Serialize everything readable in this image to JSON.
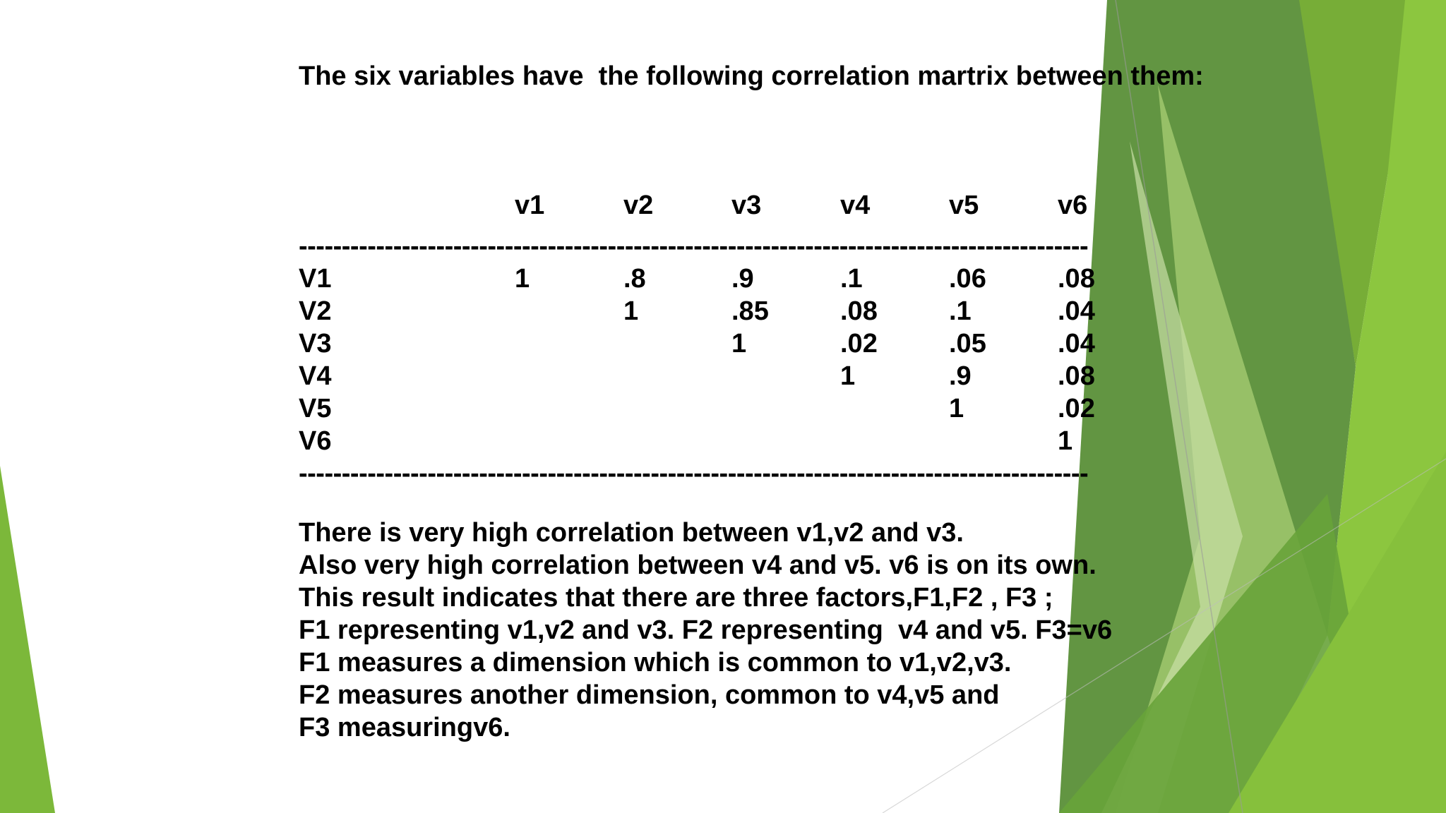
{
  "slide": {
    "title": "The six variables have  the following correlation martrix between them:",
    "colors": {
      "green_dark": "#4f8a36",
      "green_mid": "#6fa83a",
      "green_light": "#8cc63f",
      "green_pale": "#c9dfa6"
    }
  },
  "matrix": {
    "column_headers": [
      "v1",
      "v2",
      "v3",
      "v4",
      "v5",
      "v6"
    ],
    "divider": "--------------------------------------------------------------------------------------------",
    "rows": [
      {
        "label": "V1",
        "values": [
          "1",
          ".8",
          ".9",
          ".1",
          ".06",
          ".08"
        ]
      },
      {
        "label": "V2",
        "values": [
          "",
          "1",
          ".85",
          ".08",
          ".1",
          ".04"
        ]
      },
      {
        "label": "V3",
        "values": [
          "",
          "",
          "1",
          ".02",
          ".05",
          ".04"
        ]
      },
      {
        "label": "V4",
        "values": [
          "",
          "",
          "",
          "1",
          ".9",
          ".08"
        ]
      },
      {
        "label": "V5",
        "values": [
          "",
          "",
          "",
          "",
          "1",
          ".02"
        ]
      },
      {
        "label": "V6",
        "values": [
          "",
          "",
          "",
          "",
          "",
          "1"
        ]
      }
    ]
  },
  "body": {
    "lines": [
      "There is very high correlation between v1,v2 and v3.",
      "Also very high correlation between v4 and v5. v6 is on its own.",
      "This result indicates that there are three factors,F1,F2 , F3 ;",
      "F1 representing v1,v2 and v3. F2 representing  v4 and v5. F3=v6",
      "F1 measures a dimension which is common to v1,v2,v3.",
      "F2 measures another dimension, common to v4,v5 and",
      "F3 measuringv6."
    ]
  }
}
